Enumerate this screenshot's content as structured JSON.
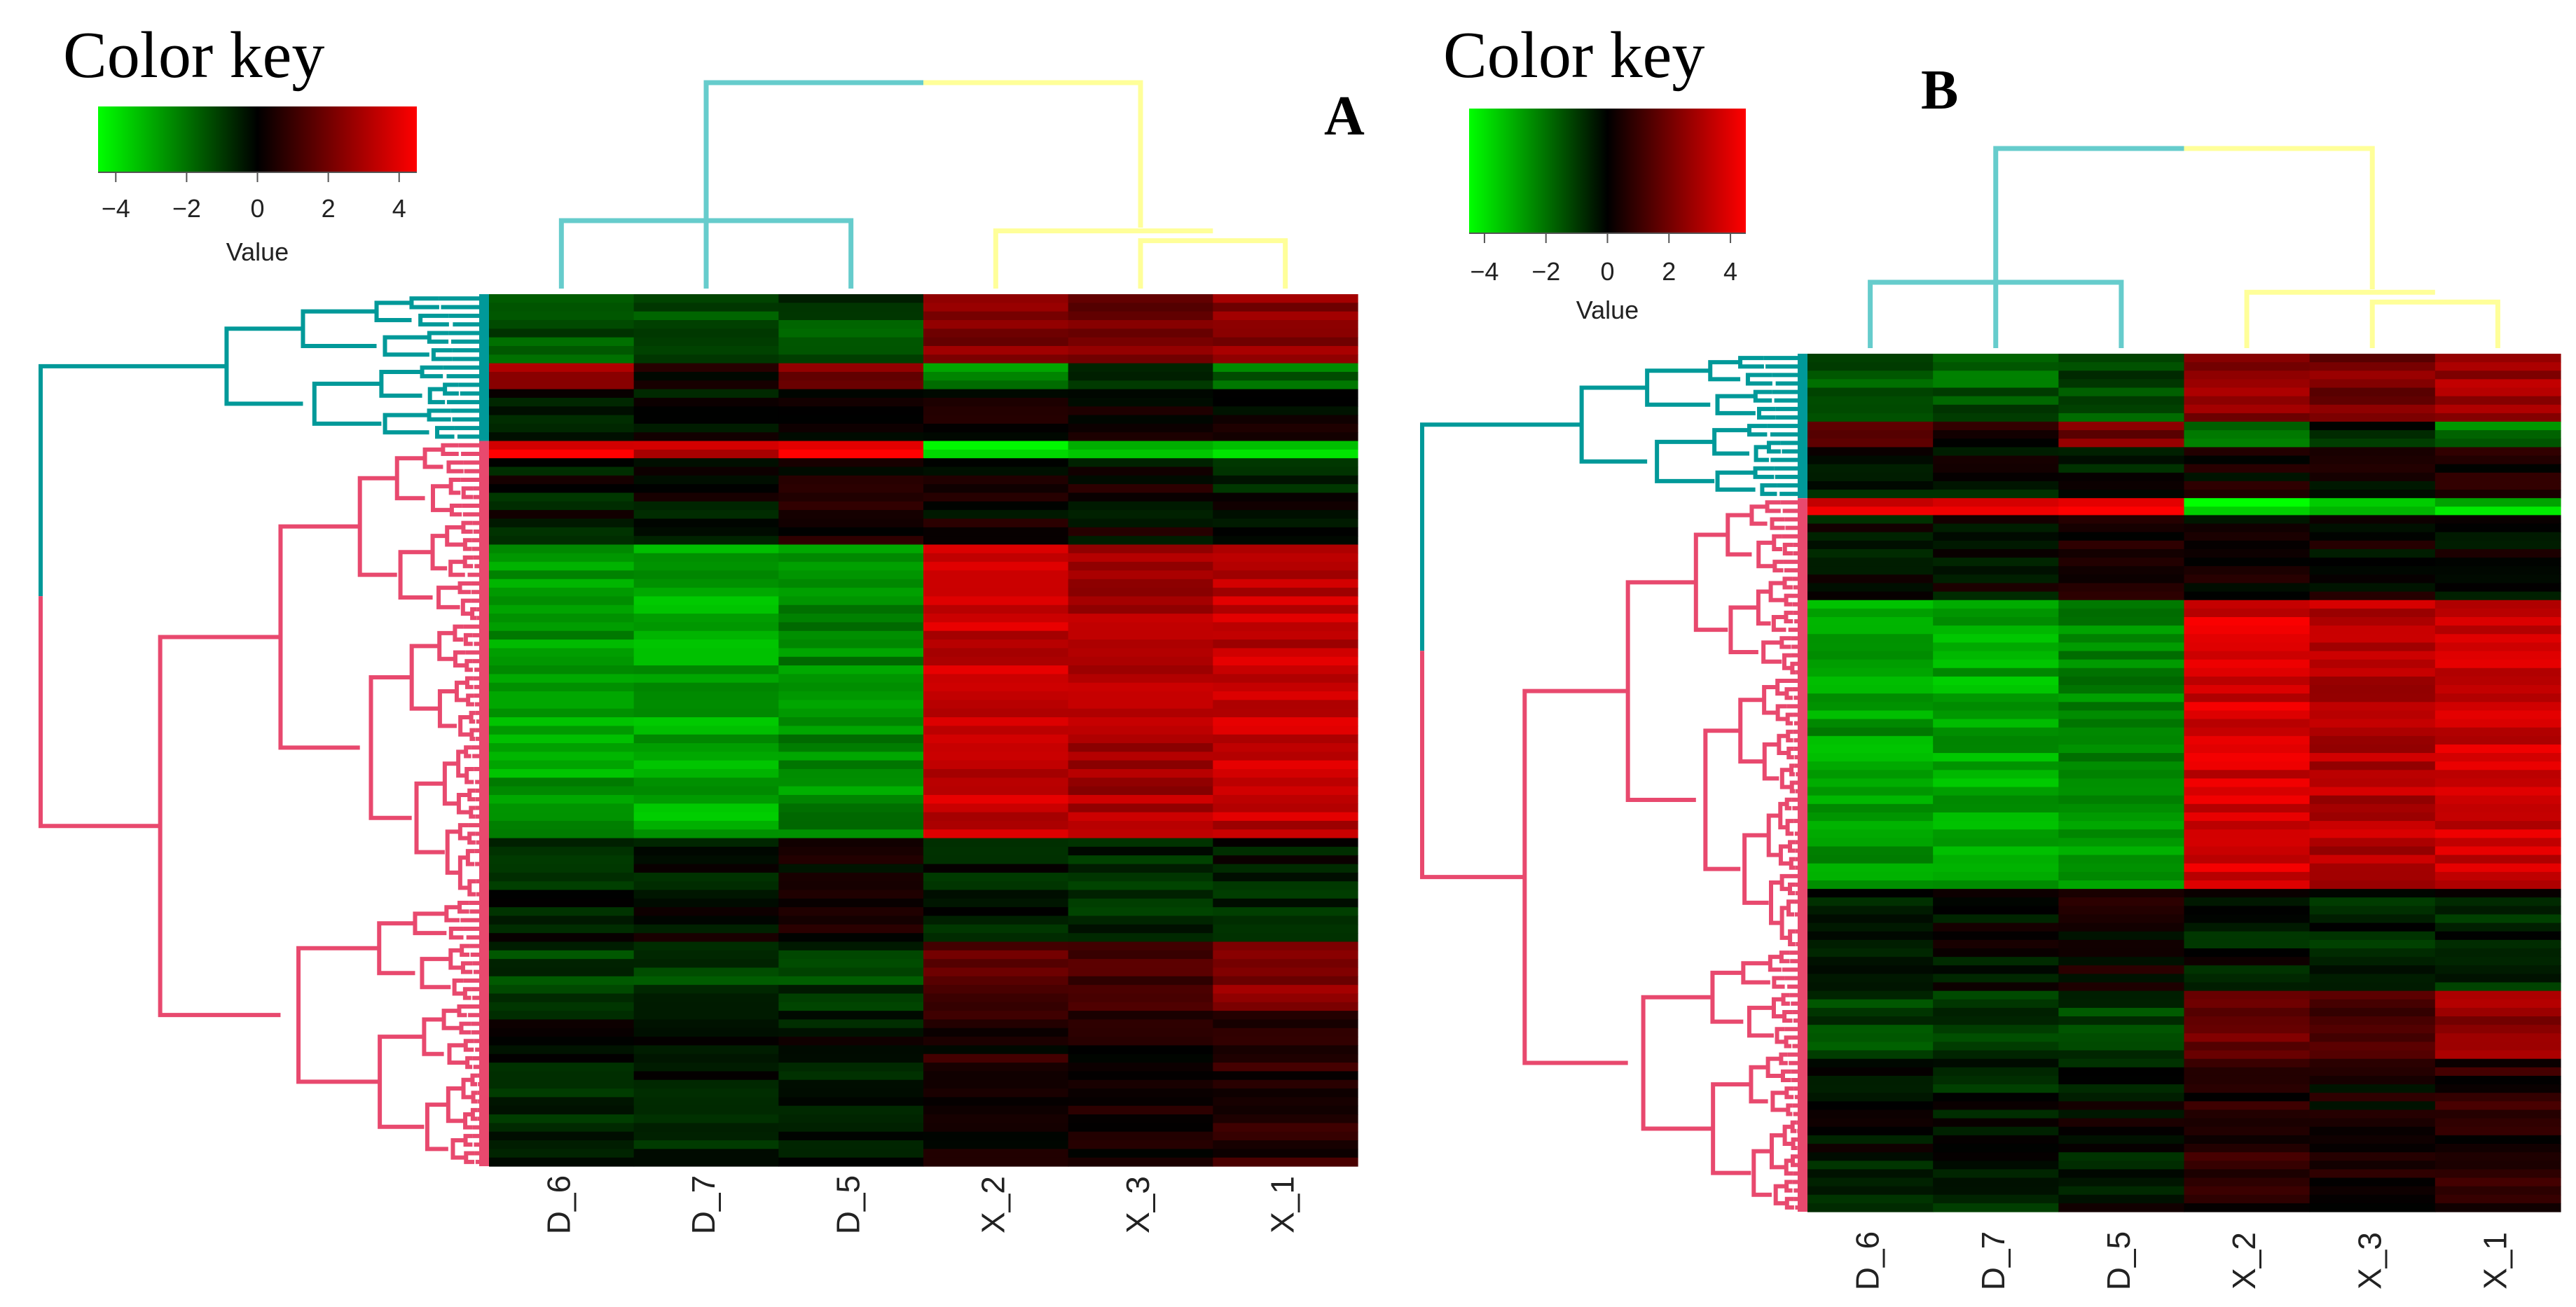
{
  "figure": {
    "colors": {
      "low": "#00ff00",
      "mid": "#000000",
      "high": "#ff0000",
      "col_cluster_left": "#66cccc",
      "col_cluster_right": "#ffff99",
      "row_cluster_top": "#009999",
      "row_cluster_bottom": "#e8496e"
    }
  },
  "chart_data": [
    {
      "panel": "A",
      "type": "heatmap",
      "color_key": {
        "title": "Color key",
        "label": "Value",
        "range": [
          -4.5,
          4.5
        ],
        "ticks": [
          "−4",
          "−2",
          "0",
          "2",
          "4"
        ]
      },
      "columns": [
        "D_6",
        "D_7",
        "D_5",
        "X_2",
        "X_3",
        "X_1"
      ],
      "row_clusters": [
        "top",
        "bottom"
      ],
      "row_blocks": [
        {
          "rows": 8,
          "cluster": "top",
          "values": [
            -1.5,
            -1.6,
            -1.2,
            2.2,
            2.0,
            2.5
          ]
        },
        {
          "rows": 3,
          "cluster": "top",
          "values": [
            2.5,
            0.5,
            2.2,
            -2.5,
            -0.7,
            -2.0
          ]
        },
        {
          "rows": 6,
          "cluster": "top",
          "values": [
            -0.2,
            -0.3,
            -0.2,
            0.2,
            0.1,
            0.2
          ]
        },
        {
          "rows": 2,
          "cluster": "bottom",
          "values": [
            4.0,
            3.5,
            4.0,
            -4.0,
            -3.5,
            -3.5
          ]
        },
        {
          "rows": 10,
          "cluster": "bottom",
          "values": [
            -0.3,
            -0.2,
            0.2,
            0.1,
            0.1,
            -0.3
          ]
        },
        {
          "rows": 34,
          "cluster": "bottom",
          "values": [
            -2.8,
            -3.0,
            -2.5,
            3.5,
            3.0,
            3.4
          ]
        },
        {
          "rows": 12,
          "cluster": "bottom",
          "values": [
            -0.5,
            -0.2,
            0.2,
            -0.4,
            -0.6,
            -0.5
          ]
        },
        {
          "rows": 8,
          "cluster": "bottom",
          "values": [
            -1.2,
            -1.0,
            -1.0,
            1.5,
            1.2,
            2.5
          ]
        },
        {
          "rows": 18,
          "cluster": "bottom",
          "values": [
            -0.4,
            -0.5,
            -0.2,
            0.5,
            0.3,
            0.6
          ]
        }
      ]
    },
    {
      "panel": "B",
      "type": "heatmap",
      "color_key": {
        "title": "Color key",
        "label": "Value",
        "range": [
          -4.5,
          4.5
        ],
        "ticks": [
          "−4",
          "−2",
          "0",
          "2",
          "4"
        ]
      },
      "columns": [
        "D_6",
        "D_7",
        "D_5",
        "X_2",
        "X_3",
        "X_1"
      ],
      "row_clusters": [
        "top",
        "bottom"
      ],
      "row_blocks": [
        {
          "rows": 8,
          "cluster": "top",
          "values": [
            -1.5,
            -1.6,
            -1.2,
            2.5,
            2.2,
            2.8
          ]
        },
        {
          "rows": 3,
          "cluster": "top",
          "values": [
            2.0,
            0.3,
            2.0,
            -2.2,
            -0.6,
            -2.0
          ]
        },
        {
          "rows": 6,
          "cluster": "top",
          "values": [
            -0.2,
            -0.3,
            -0.2,
            0.2,
            0.1,
            0.3
          ]
        },
        {
          "rows": 2,
          "cluster": "bottom",
          "values": [
            4.0,
            3.8,
            4.0,
            -4.0,
            -3.5,
            -3.5
          ]
        },
        {
          "rows": 10,
          "cluster": "bottom",
          "values": [
            -0.3,
            -0.2,
            0.2,
            0.1,
            0.1,
            -0.2
          ]
        },
        {
          "rows": 34,
          "cluster": "bottom",
          "values": [
            -2.8,
            -3.0,
            -2.5,
            3.8,
            3.2,
            3.6
          ]
        },
        {
          "rows": 12,
          "cluster": "bottom",
          "values": [
            -0.5,
            -0.2,
            0.2,
            -0.4,
            -0.6,
            -0.5
          ]
        },
        {
          "rows": 8,
          "cluster": "bottom",
          "values": [
            -1.2,
            -1.0,
            -1.0,
            1.8,
            1.5,
            2.5
          ]
        },
        {
          "rows": 18,
          "cluster": "bottom",
          "values": [
            -0.4,
            -0.5,
            -0.2,
            0.6,
            0.3,
            0.6
          ]
        }
      ]
    }
  ]
}
